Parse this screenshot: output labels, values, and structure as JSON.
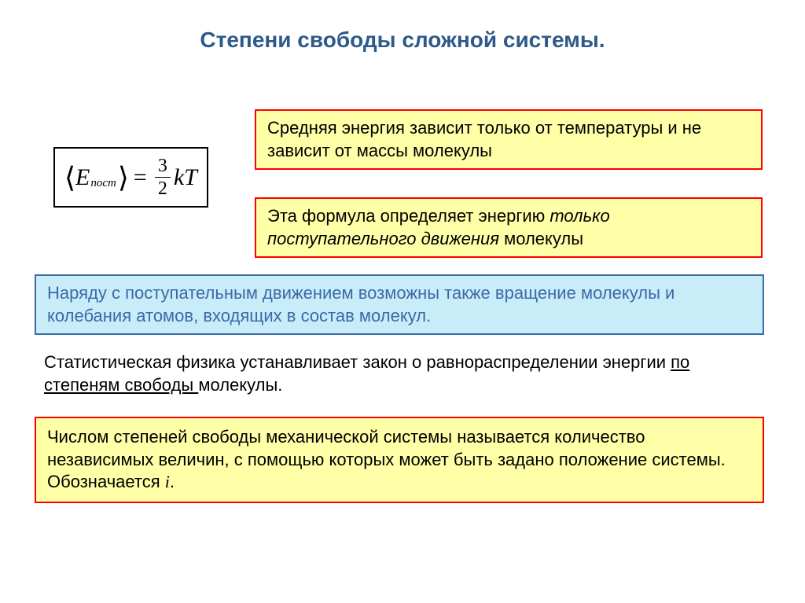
{
  "title": "Степени свободы сложной системы.",
  "formula": {
    "E_letter": "E",
    "subscript": "пост",
    "numerator": "3",
    "denominator": "2",
    "tail": "kT"
  },
  "box1": "Средняя энергия зависит только от температуры и не зависит от массы молекулы",
  "box2": {
    "prefix": "Эта формула определяет энергию ",
    "italic": "только поступательного движения",
    "suffix": " молекулы"
  },
  "cyanbox": "Наряду с поступательным движением возможны также вращение молекулы и колебания атомов, входящих в состав молекул.",
  "plain": {
    "pre": "Статистическая физика устанавливает закон о равнораспределении энергии ",
    "underline": "по степеням свободы ",
    "post": "молекулы."
  },
  "box3": {
    "text": "Числом степеней свободы механической системы называется количество независимых величин, с помощью которых может быть задано положение системы. Обозначается ",
    "i": "i",
    "dot": "."
  },
  "colors": {
    "title": "#2e5a8a",
    "yellow_bg": "#ffffa8",
    "red_border": "#ff0000",
    "cyan_bg": "#c9ecf9",
    "cyan_border": "#3a6aa8",
    "cyan_text": "#3a6aa8",
    "body_bg": "#ffffff"
  },
  "fonts": {
    "title_size": 28,
    "body_size": 22,
    "formula_size": 30
  }
}
